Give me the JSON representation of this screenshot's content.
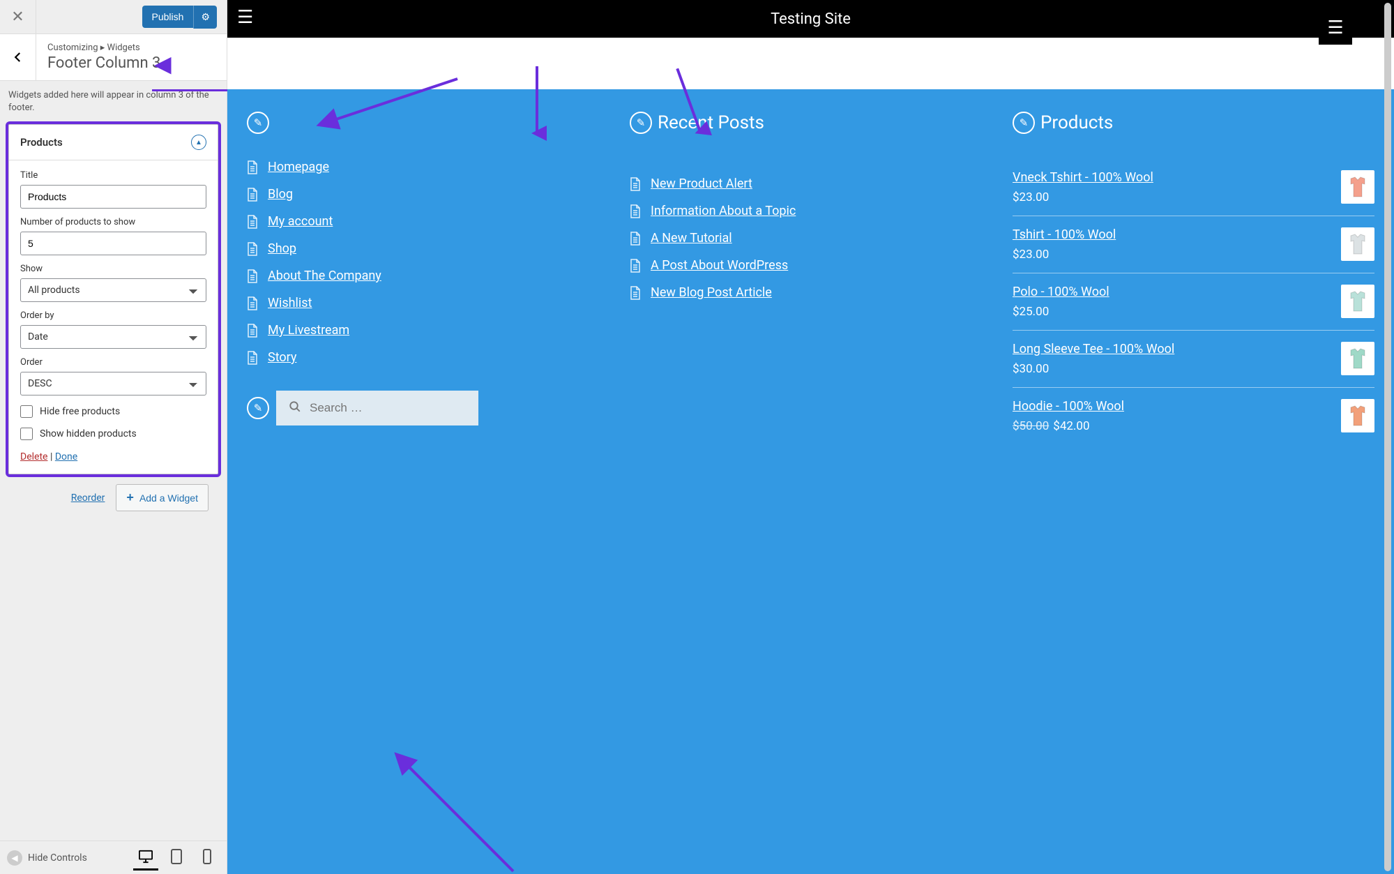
{
  "colors": {
    "annotation": "#6a2edc",
    "preview_bg": "#3399e3",
    "primary_btn": "#2271b1",
    "link_delete": "#b32d2e"
  },
  "sidebar": {
    "publish_label": "Publish",
    "crumb_prefix": "Customizing",
    "crumb_separator": "▸",
    "crumb_parent": "Widgets",
    "section_title": "Footer Column 3",
    "help_text": "Widgets added here will appear in column 3 of the footer.",
    "reorder_label": "Reorder",
    "add_widget_label": "Add a Widget",
    "hide_controls_label": "Hide Controls"
  },
  "widget": {
    "title_bar": "Products",
    "fields": {
      "title_label": "Title",
      "title_value": "Products",
      "count_label": "Number of products to show",
      "count_value": "5",
      "show_label": "Show",
      "show_value": "All products",
      "orderby_label": "Order by",
      "orderby_value": "Date",
      "order_label": "Order",
      "order_value": "DESC",
      "hide_free_label": "Hide free products",
      "show_hidden_label": "Show hidden products"
    },
    "delete_label": "Delete",
    "done_label": "Done"
  },
  "site": {
    "title": "Testing Site"
  },
  "footer_cols": {
    "nav": {
      "items": [
        "Homepage",
        "Blog",
        "My account",
        "Shop",
        "About The Company",
        "Wishlist",
        "My Livestream",
        "Story"
      ]
    },
    "recent": {
      "heading": "Recent Posts",
      "items": [
        "New Product Alert",
        "Information About a Topic",
        "A New Tutorial",
        "A Post About WordPress",
        "New Blog Post Article"
      ]
    },
    "products": {
      "heading": "Products",
      "items": [
        {
          "name": "Vneck Tshirt - 100% Wool",
          "price": "$23.00",
          "swatch": "#f4a08c"
        },
        {
          "name": "Tshirt - 100% Wool",
          "price": "$23.00",
          "swatch": "#dce2e4"
        },
        {
          "name": "Polo - 100% Wool",
          "price": "$25.00",
          "swatch": "#b9e1d9"
        },
        {
          "name": "Long Sleeve Tee - 100% Wool",
          "price": "$30.00",
          "swatch": "#9fd9c7"
        },
        {
          "name": "Hoodie - 100% Wool",
          "price": "$42.00",
          "old_price": "$50.00",
          "swatch": "#f2a07a"
        }
      ]
    }
  },
  "search": {
    "placeholder": "Search …"
  }
}
